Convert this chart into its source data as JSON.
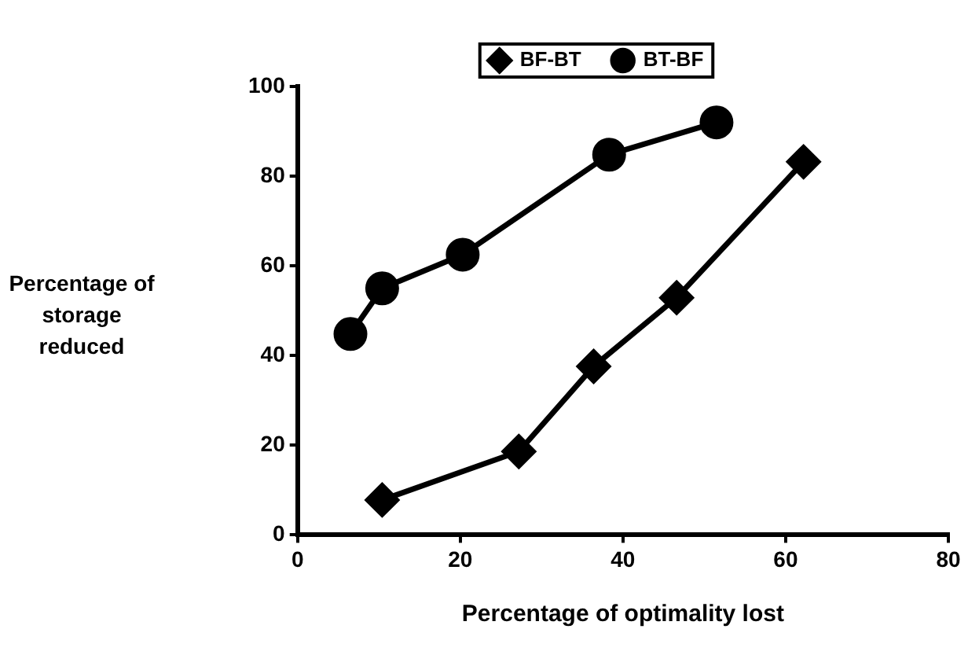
{
  "chart_data": {
    "type": "line",
    "xlabel": "Percentage of optimality lost",
    "ylabel": "Percentage of storage reduced",
    "xlim": [
      0,
      80
    ],
    "xticks": [
      0,
      20,
      40,
      60,
      80
    ],
    "ylim": [
      0,
      100
    ],
    "yticks": [
      0,
      20,
      40,
      60,
      80,
      100
    ],
    "grid": false,
    "legend": "top",
    "series": [
      {
        "name": "BF-BT",
        "color": "#000000",
        "marker": "diamond",
        "x": [
          10.4,
          27.2,
          36.4,
          46.6,
          62.2
        ],
        "values": [
          7.8,
          18.6,
          37.6,
          52.9,
          83.2
        ]
      },
      {
        "name": "BT-BF",
        "color": "#000000",
        "marker": "circle",
        "x": [
          6.5,
          10.4,
          20.3,
          38.3,
          51.5
        ],
        "values": [
          44.8,
          55,
          62.5,
          84.8,
          92
        ]
      }
    ]
  }
}
